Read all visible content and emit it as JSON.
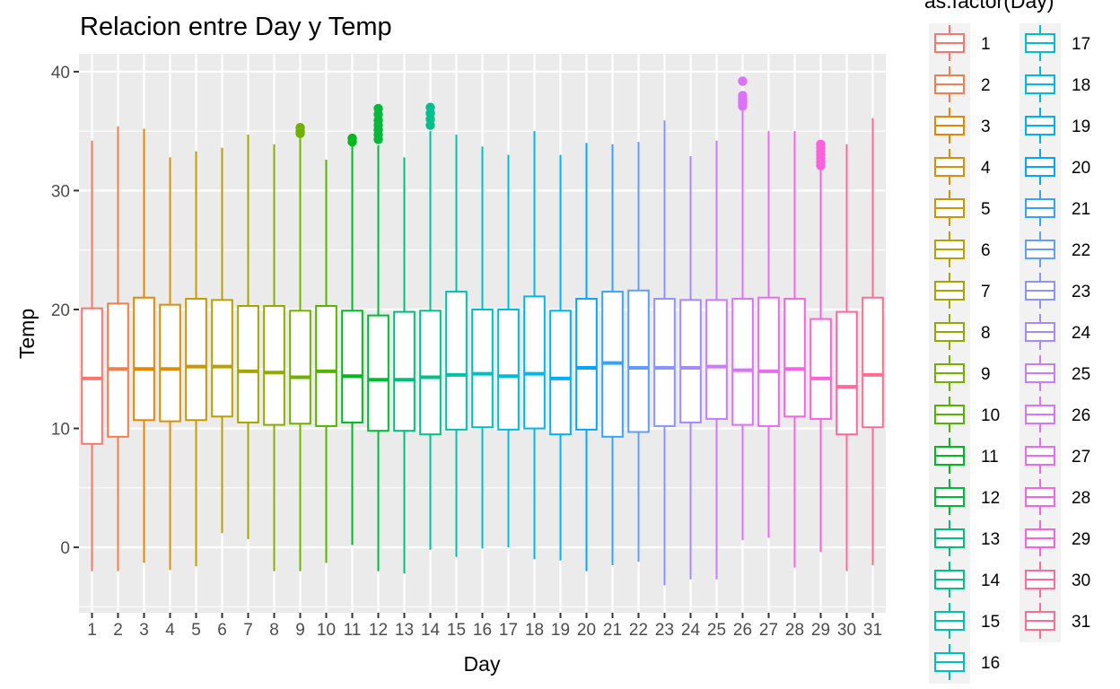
{
  "chart_data": {
    "type": "box",
    "title": "Relacion entre Day y Temp",
    "xlabel": "Day",
    "ylabel": "Temp",
    "ylim": [
      -5.5,
      41.5
    ],
    "yticks": [
      0,
      10,
      20,
      30,
      40
    ],
    "grid": true,
    "legend": {
      "title": "as.factor(Day)",
      "position": "right",
      "columns": 2
    },
    "categories": [
      "1",
      "2",
      "3",
      "4",
      "5",
      "6",
      "7",
      "8",
      "9",
      "10",
      "11",
      "12",
      "13",
      "14",
      "15",
      "16",
      "17",
      "18",
      "19",
      "20",
      "21",
      "22",
      "23",
      "24",
      "25",
      "26",
      "27",
      "28",
      "29",
      "30",
      "31"
    ],
    "colors": [
      "#F8766D",
      "#F07E4E",
      "#E58700",
      "#D8900A",
      "#C99800",
      "#B8A000",
      "#A3A500",
      "#8EAB00",
      "#72B000",
      "#53B400",
      "#00B81F",
      "#00BA38",
      "#00BF7D",
      "#00C08B",
      "#00C1A9",
      "#00BFC4",
      "#00BBDA",
      "#00B6EB",
      "#00B0F6",
      "#06A4FF",
      "#35A2FF",
      "#619CFF",
      "#8B93FF",
      "#A58AFF",
      "#C77CFF",
      "#DB72FB",
      "#E76BF3",
      "#F564E3",
      "#FA62DB",
      "#FF6A98",
      "#FF6C91"
    ],
    "boxes": [
      {
        "min": -2.0,
        "q1": 8.7,
        "median": 14.2,
        "q3": 20.1,
        "max": 34.2,
        "outliers": []
      },
      {
        "min": -2.0,
        "q1": 9.3,
        "median": 15.0,
        "q3": 20.5,
        "max": 35.4,
        "outliers": []
      },
      {
        "min": -1.3,
        "q1": 10.7,
        "median": 15.0,
        "q3": 21.0,
        "max": 35.2,
        "outliers": []
      },
      {
        "min": -1.9,
        "q1": 10.6,
        "median": 15.0,
        "q3": 20.4,
        "max": 32.8,
        "outliers": []
      },
      {
        "min": -1.6,
        "q1": 10.7,
        "median": 15.2,
        "q3": 20.9,
        "max": 33.3,
        "outliers": []
      },
      {
        "min": 1.2,
        "q1": 11.0,
        "median": 15.2,
        "q3": 20.8,
        "max": 33.6,
        "outliers": []
      },
      {
        "min": 0.7,
        "q1": 10.5,
        "median": 14.8,
        "q3": 20.3,
        "max": 34.7,
        "outliers": []
      },
      {
        "min": -2.0,
        "q1": 10.3,
        "median": 14.7,
        "q3": 20.3,
        "max": 33.9,
        "outliers": []
      },
      {
        "min": -2.0,
        "q1": 10.4,
        "median": 14.3,
        "q3": 19.9,
        "max": 34.4,
        "outliers": [
          34.8,
          35.0,
          35.3
        ]
      },
      {
        "min": -1.3,
        "q1": 10.2,
        "median": 14.8,
        "q3": 20.3,
        "max": 32.6,
        "outliers": []
      },
      {
        "min": 0.2,
        "q1": 10.5,
        "median": 14.4,
        "q3": 19.9,
        "max": 33.8,
        "outliers": [
          34.1,
          34.4
        ]
      },
      {
        "min": -2.0,
        "q1": 9.8,
        "median": 14.1,
        "q3": 19.5,
        "max": 33.8,
        "outliers": [
          34.3,
          34.7,
          35.1,
          35.5,
          35.9,
          36.4,
          36.9
        ]
      },
      {
        "min": -2.2,
        "q1": 9.8,
        "median": 14.1,
        "q3": 19.8,
        "max": 32.8,
        "outliers": []
      },
      {
        "min": -0.2,
        "q1": 9.5,
        "median": 14.3,
        "q3": 19.9,
        "max": 35.0,
        "outliers": [
          35.5,
          36.0,
          36.5,
          37.0
        ]
      },
      {
        "min": -0.8,
        "q1": 9.9,
        "median": 14.5,
        "q3": 21.5,
        "max": 34.7,
        "outliers": []
      },
      {
        "min": -0.1,
        "q1": 10.1,
        "median": 14.6,
        "q3": 20.0,
        "max": 33.7,
        "outliers": []
      },
      {
        "min": 0.0,
        "q1": 9.9,
        "median": 14.4,
        "q3": 20.0,
        "max": 33.0,
        "outliers": []
      },
      {
        "min": -1.0,
        "q1": 10.0,
        "median": 14.6,
        "q3": 21.1,
        "max": 35.0,
        "outliers": []
      },
      {
        "min": -1.1,
        "q1": 9.5,
        "median": 14.2,
        "q3": 19.9,
        "max": 33.0,
        "outliers": []
      },
      {
        "min": -2.0,
        "q1": 9.9,
        "median": 15.1,
        "q3": 20.9,
        "max": 34.0,
        "outliers": []
      },
      {
        "min": -1.5,
        "q1": 9.3,
        "median": 15.5,
        "q3": 21.5,
        "max": 33.9,
        "outliers": []
      },
      {
        "min": -1.2,
        "q1": 9.7,
        "median": 15.1,
        "q3": 21.6,
        "max": 34.1,
        "outliers": []
      },
      {
        "min": -3.2,
        "q1": 10.2,
        "median": 15.1,
        "q3": 20.9,
        "max": 35.9,
        "outliers": []
      },
      {
        "min": -2.7,
        "q1": 10.5,
        "median": 15.1,
        "q3": 20.8,
        "max": 32.9,
        "outliers": []
      },
      {
        "min": -2.7,
        "q1": 10.8,
        "median": 15.2,
        "q3": 20.8,
        "max": 34.2,
        "outliers": []
      },
      {
        "min": 0.6,
        "q1": 10.3,
        "median": 14.9,
        "q3": 20.9,
        "max": 36.8,
        "outliers": [
          37.1,
          37.4,
          37.7,
          38.0,
          39.2
        ]
      },
      {
        "min": 0.8,
        "q1": 10.2,
        "median": 14.8,
        "q3": 21.0,
        "max": 35.0,
        "outliers": []
      },
      {
        "min": -1.7,
        "q1": 11.0,
        "median": 15.0,
        "q3": 20.9,
        "max": 35.0,
        "outliers": []
      },
      {
        "min": -0.4,
        "q1": 10.8,
        "median": 14.2,
        "q3": 19.2,
        "max": 31.8,
        "outliers": [
          32.1,
          32.4,
          32.7,
          33.0,
          33.3,
          33.6,
          33.9
        ]
      },
      {
        "min": -2.0,
        "q1": 9.5,
        "median": 13.5,
        "q3": 19.8,
        "max": 33.9,
        "outliers": []
      },
      {
        "min": -1.5,
        "q1": 10.1,
        "median": 14.5,
        "q3": 21.0,
        "max": 36.1,
        "outliers": []
      }
    ]
  }
}
